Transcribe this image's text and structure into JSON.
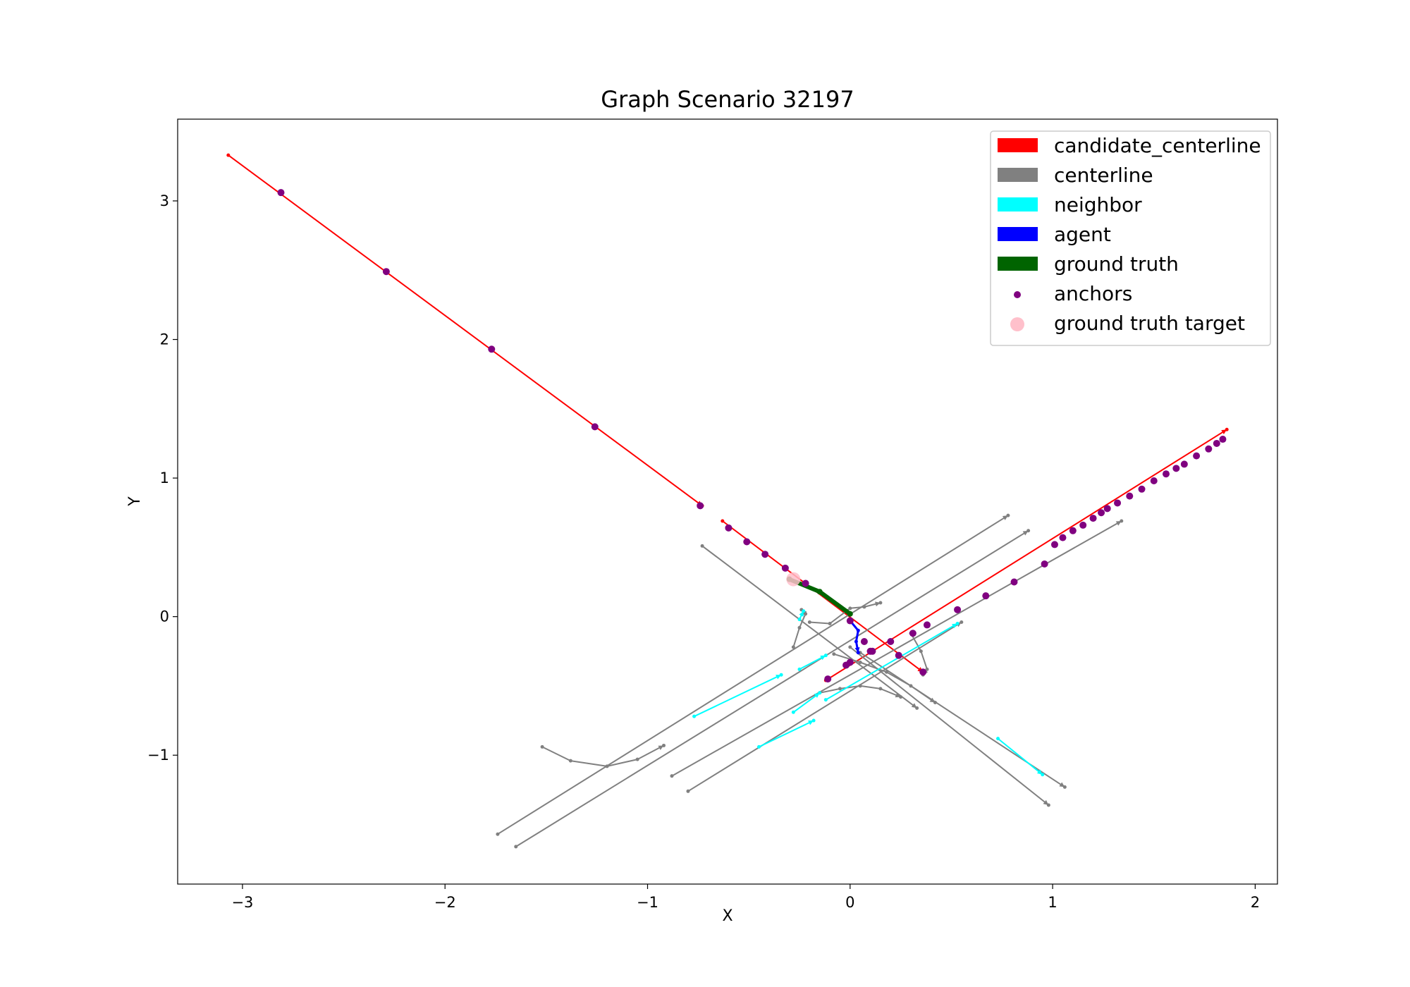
{
  "chart_data": {
    "type": "line",
    "title": "Graph Scenario 32197",
    "xlabel": "X",
    "ylabel": "Y",
    "xlim": [
      -3.32,
      2.11
    ],
    "ylim": [
      -1.93,
      3.59
    ],
    "xticks": [
      -3,
      -2,
      -1,
      0,
      1,
      2
    ],
    "yticks": [
      -1,
      0,
      1,
      2,
      3
    ],
    "xtick_labels": [
      "−3",
      "−2",
      "−1",
      "0",
      "1",
      "2"
    ],
    "ytick_labels": [
      "−1",
      "0",
      "1",
      "2",
      "3"
    ],
    "grid": false,
    "legend_position": "top-right",
    "legend": [
      {
        "label": "candidate_centerline",
        "color": "#ff0000",
        "marker": "patch"
      },
      {
        "label": "centerline",
        "color": "#808080",
        "marker": "patch"
      },
      {
        "label": "neighbor",
        "color": "#00ffff",
        "marker": "patch"
      },
      {
        "label": "agent",
        "color": "#0000ff",
        "marker": "patch"
      },
      {
        "label": "ground truth",
        "color": "#006400",
        "marker": "patch"
      },
      {
        "label": "anchors",
        "color": "#800080",
        "marker": "dot"
      },
      {
        "label": "ground truth target",
        "color": "#ffc0cb",
        "marker": "circle"
      }
    ],
    "series": [
      {
        "name": "candidate_centerline",
        "color": "#ff0000",
        "lines": [
          [
            [
              -3.07,
              3.33
            ],
            [
              -0.73,
              0.8
            ]
          ],
          [
            [
              -0.63,
              0.69
            ],
            [
              0.36,
              -0.4
            ]
          ],
          [
            [
              -0.12,
              -0.46
            ],
            [
              1.86,
              1.35
            ]
          ]
        ]
      },
      {
        "name": "centerline",
        "color": "#808080",
        "lines": [
          [
            [
              -0.73,
              0.51
            ],
            [
              0.33,
              -0.66
            ]
          ],
          [
            [
              0.05,
              -0.26
            ],
            [
              1.06,
              -1.23
            ]
          ],
          [
            [
              0.0,
              -0.22
            ],
            [
              0.98,
              -1.36
            ]
          ],
          [
            [
              -1.74,
              -1.57
            ],
            [
              0.78,
              0.73
            ]
          ],
          [
            [
              -1.65,
              -1.66
            ],
            [
              0.88,
              0.62
            ]
          ],
          [
            [
              -0.88,
              -1.15
            ],
            [
              1.34,
              0.69
            ]
          ],
          [
            [
              -0.8,
              -1.26
            ],
            [
              0.55,
              -0.04
            ]
          ],
          [
            [
              -0.2,
              -0.04
            ],
            [
              -0.1,
              -0.05
            ],
            [
              0.0,
              0.06
            ],
            [
              0.07,
              0.07
            ],
            [
              0.15,
              0.1
            ]
          ],
          [
            [
              -1.52,
              -0.94
            ],
            [
              -1.38,
              -1.04
            ],
            [
              -1.2,
              -1.08
            ],
            [
              -1.05,
              -1.03
            ],
            [
              -0.92,
              -0.93
            ]
          ],
          [
            [
              -0.28,
              -0.22
            ],
            [
              -0.25,
              -0.08
            ],
            [
              -0.22,
              0.02
            ],
            [
              -0.24,
              0.05
            ]
          ],
          [
            [
              -0.15,
              -0.55
            ],
            [
              -0.05,
              -0.52
            ],
            [
              0.05,
              -0.5
            ],
            [
              0.15,
              -0.52
            ],
            [
              0.25,
              -0.58
            ]
          ],
          [
            [
              0.3,
              -0.12
            ],
            [
              0.35,
              -0.25
            ],
            [
              0.38,
              -0.38
            ],
            [
              0.36,
              -0.42
            ]
          ],
          [
            [
              -0.08,
              -0.27
            ],
            [
              0.05,
              -0.33
            ],
            [
              0.18,
              -0.4
            ],
            [
              0.3,
              -0.5
            ],
            [
              0.42,
              -0.62
            ]
          ]
        ]
      },
      {
        "name": "neighbor",
        "color": "#00ffff",
        "lines": [
          [
            [
              -0.77,
              -0.72
            ],
            [
              -0.34,
              -0.42
            ]
          ],
          [
            [
              -0.28,
              -0.69
            ],
            [
              -0.15,
              -0.55
            ]
          ],
          [
            [
              -0.45,
              -0.94
            ],
            [
              -0.18,
              -0.75
            ]
          ],
          [
            [
              -0.12,
              -0.6
            ],
            [
              0.53,
              -0.05
            ]
          ],
          [
            [
              -0.25,
              -0.38
            ],
            [
              -0.12,
              -0.28
            ]
          ],
          [
            [
              -0.25,
              -0.02
            ],
            [
              -0.23,
              0.04
            ]
          ],
          [
            [
              0.73,
              -0.88
            ],
            [
              0.95,
              -1.14
            ]
          ]
        ]
      },
      {
        "name": "agent",
        "color": "#0000ff",
        "lines": [
          [
            [
              0.0,
              -0.03
            ],
            [
              0.04,
              -0.1
            ],
            [
              0.03,
              -0.18
            ],
            [
              0.04,
              -0.26
            ]
          ]
        ]
      },
      {
        "name": "ground truth",
        "color": "#006400",
        "lines": [
          [
            [
              -0.3,
              0.27
            ],
            [
              -0.15,
              0.18
            ],
            [
              0.0,
              0.02
            ]
          ]
        ]
      },
      {
        "name": "anchors",
        "color": "#800080",
        "points": [
          [
            -2.81,
            3.06
          ],
          [
            -2.29,
            2.49
          ],
          [
            -1.77,
            1.93
          ],
          [
            -1.26,
            1.37
          ],
          [
            -0.74,
            0.8
          ],
          [
            -0.6,
            0.64
          ],
          [
            -0.51,
            0.54
          ],
          [
            -0.42,
            0.45
          ],
          [
            -0.32,
            0.35
          ],
          [
            -0.22,
            0.24
          ],
          [
            0.0,
            -0.03
          ],
          [
            0.07,
            -0.18
          ],
          [
            0.1,
            -0.25
          ],
          [
            0.24,
            -0.28
          ],
          [
            0.36,
            -0.4
          ],
          [
            -0.11,
            -0.45
          ],
          [
            -0.02,
            -0.35
          ],
          [
            0.0,
            -0.33
          ],
          [
            0.11,
            -0.25
          ],
          [
            0.2,
            -0.18
          ],
          [
            0.31,
            -0.12
          ],
          [
            0.38,
            -0.06
          ],
          [
            0.53,
            0.05
          ],
          [
            0.67,
            0.15
          ],
          [
            0.81,
            0.25
          ],
          [
            0.96,
            0.38
          ],
          [
            1.01,
            0.52
          ],
          [
            1.05,
            0.57
          ],
          [
            1.1,
            0.62
          ],
          [
            1.15,
            0.66
          ],
          [
            1.2,
            0.71
          ],
          [
            1.24,
            0.75
          ],
          [
            1.27,
            0.78
          ],
          [
            1.32,
            0.82
          ],
          [
            1.38,
            0.87
          ],
          [
            1.44,
            0.92
          ],
          [
            1.5,
            0.98
          ],
          [
            1.56,
            1.03
          ],
          [
            1.61,
            1.07
          ],
          [
            1.65,
            1.1
          ],
          [
            1.71,
            1.16
          ],
          [
            1.77,
            1.21
          ],
          [
            1.81,
            1.25
          ],
          [
            1.84,
            1.28
          ]
        ]
      },
      {
        "name": "ground truth target",
        "color": "#ffc0cb",
        "points": [
          [
            -0.28,
            0.27
          ]
        ]
      }
    ]
  }
}
